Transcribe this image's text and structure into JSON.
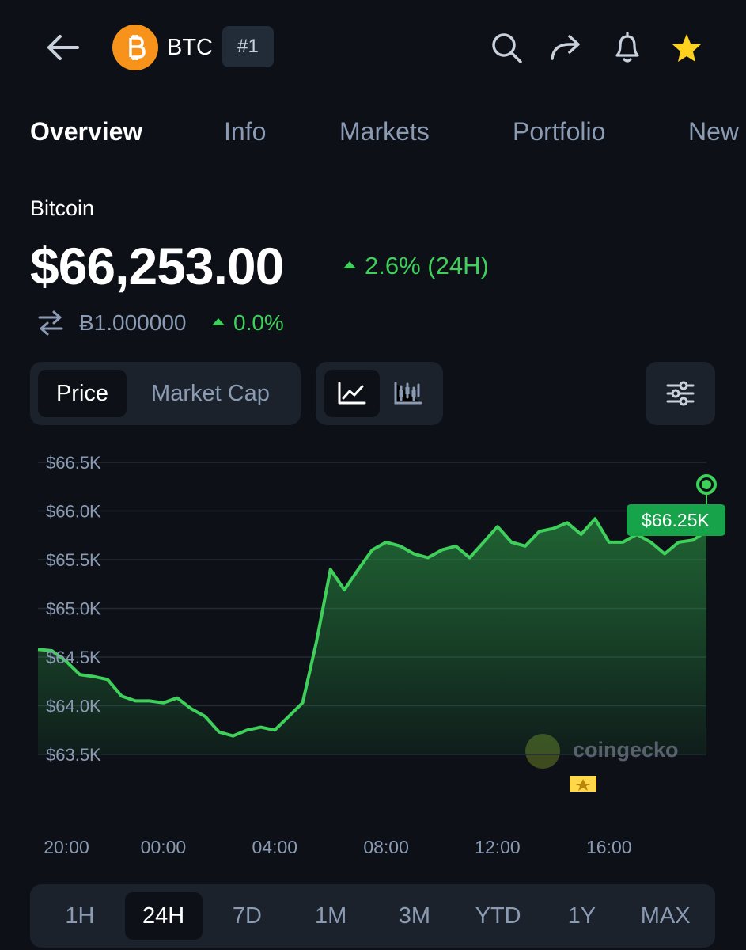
{
  "header": {
    "symbol": "BTC",
    "rank": "#1"
  },
  "tabs": {
    "items": [
      "Overview",
      "Info",
      "Markets",
      "Portfolio",
      "New"
    ],
    "active": "Overview"
  },
  "coin": {
    "name": "Bitcoin",
    "price": "$66,253.00",
    "change": "2.6% (24H)",
    "btc_price": "Ƀ1.000000",
    "btc_change": "0.0%"
  },
  "toggle": {
    "items": [
      "Price",
      "Market Cap"
    ],
    "active": "Price"
  },
  "chart_data": {
    "type": "line",
    "x": [
      19.5,
      20,
      20.5,
      21,
      21.5,
      22,
      22.5,
      23,
      23.5,
      24,
      24.5,
      25,
      25.5,
      26,
      26.5,
      27,
      27.5,
      28,
      28.5,
      29,
      29.5,
      30,
      30.5,
      31,
      31.5,
      32,
      32.5,
      33,
      33.5,
      34,
      34.5,
      35,
      35.5,
      36,
      36.5,
      37,
      37.5,
      38,
      38.5,
      39,
      39.5,
      40,
      40.5,
      41,
      41.5,
      42,
      42.5,
      43,
      43.5
    ],
    "series": [
      {
        "name": "Price",
        "color": "#3fcf5b",
        "values": [
          64580,
          64565,
          64460,
          64320,
          64300,
          64270,
          64100,
          64050,
          64050,
          64030,
          64080,
          63970,
          63890,
          63730,
          63690,
          63750,
          63780,
          63750,
          63890,
          64030,
          64660,
          65400,
          65190,
          65400,
          65600,
          65680,
          65640,
          65560,
          65520,
          65600,
          65640,
          65520,
          65680,
          65840,
          65680,
          65640,
          65790,
          65820,
          65880,
          65760,
          65920,
          65680,
          65680,
          65760,
          65680,
          65560,
          65680,
          65700,
          65790
        ]
      }
    ],
    "xlim": [
      19.5,
      43.5
    ],
    "xticks": [
      {
        "value": 20,
        "label": "20:00"
      },
      {
        "value": 24,
        "label": "00:00"
      },
      {
        "value": 28,
        "label": "04:00"
      },
      {
        "value": 32,
        "label": "08:00"
      },
      {
        "value": 36,
        "label": "12:00"
      },
      {
        "value": 40,
        "label": "16:00"
      }
    ],
    "ylim": [
      63500,
      66500
    ],
    "yticks": [
      {
        "value": 63500,
        "label": "$63.5K"
      },
      {
        "value": 64000,
        "label": "$64.0K"
      },
      {
        "value": 64500,
        "label": "$64.5K"
      },
      {
        "value": 65000,
        "label": "$65.0K"
      },
      {
        "value": 65500,
        "label": "$65.5K"
      },
      {
        "value": 66000,
        "label": "$66.0K"
      },
      {
        "value": 66500,
        "label": "$66.5K"
      }
    ],
    "grid": true,
    "annotation": "$66.25K",
    "watermark": "coingecko"
  },
  "ranges": {
    "items": [
      "1H",
      "24H",
      "7D",
      "1M",
      "3M",
      "YTD",
      "1Y",
      "MAX"
    ],
    "active": "24H"
  }
}
